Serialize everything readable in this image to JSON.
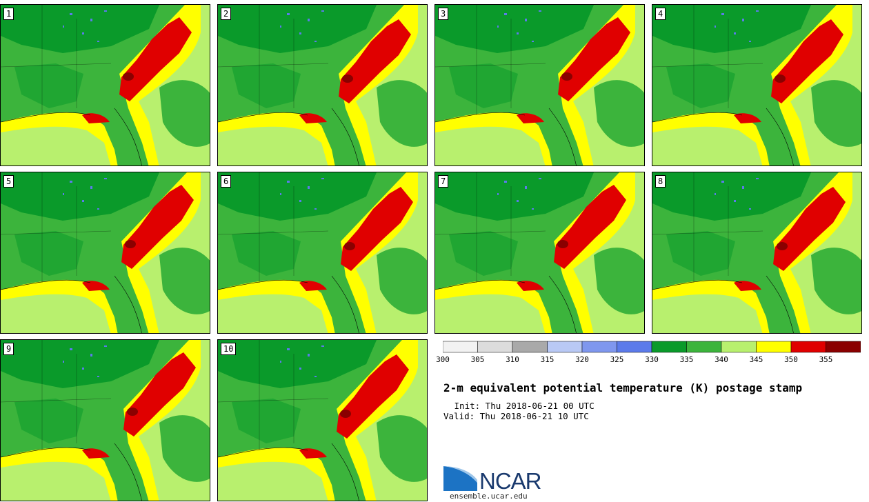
{
  "figure": {
    "title": "2-m equivalent potential temperature (K) postage stamp",
    "init": " Init: Thu 2018-06-21 00 UTC",
    "valid": "Valid: Thu 2018-06-21 10 UTC"
  },
  "panels": [
    {
      "label": "1"
    },
    {
      "label": "2"
    },
    {
      "label": "3"
    },
    {
      "label": "4"
    },
    {
      "label": "5"
    },
    {
      "label": "6"
    },
    {
      "label": "7"
    },
    {
      "label": "8"
    },
    {
      "label": "9"
    },
    {
      "label": "10"
    }
  ],
  "colorbar": {
    "unit": "K",
    "bounds": [
      "300",
      "305",
      "310",
      "315",
      "320",
      "325",
      "330",
      "335",
      "340",
      "345",
      "350",
      "355"
    ],
    "colors": [
      "#f2f2f2",
      "#dcdcdc",
      "#a9a9a9",
      "#b9c9f5",
      "#7f97ee",
      "#5c7bea",
      "#0a9a2a",
      "#3cb43c",
      "#b8f06e",
      "#ffff00",
      "#e00000",
      "#8a0000"
    ]
  },
  "map_colors": {
    "land_dark": "#0a9a2a",
    "land_mid": "#3cb43c",
    "ocean_light": "#b8f06e",
    "yellow": "#ffff00",
    "red": "#e00000",
    "dark_red": "#8a0000",
    "blue": "#5c7bea"
  },
  "logo": {
    "name": "NCAR",
    "url": "ensemble.ucar.edu"
  }
}
